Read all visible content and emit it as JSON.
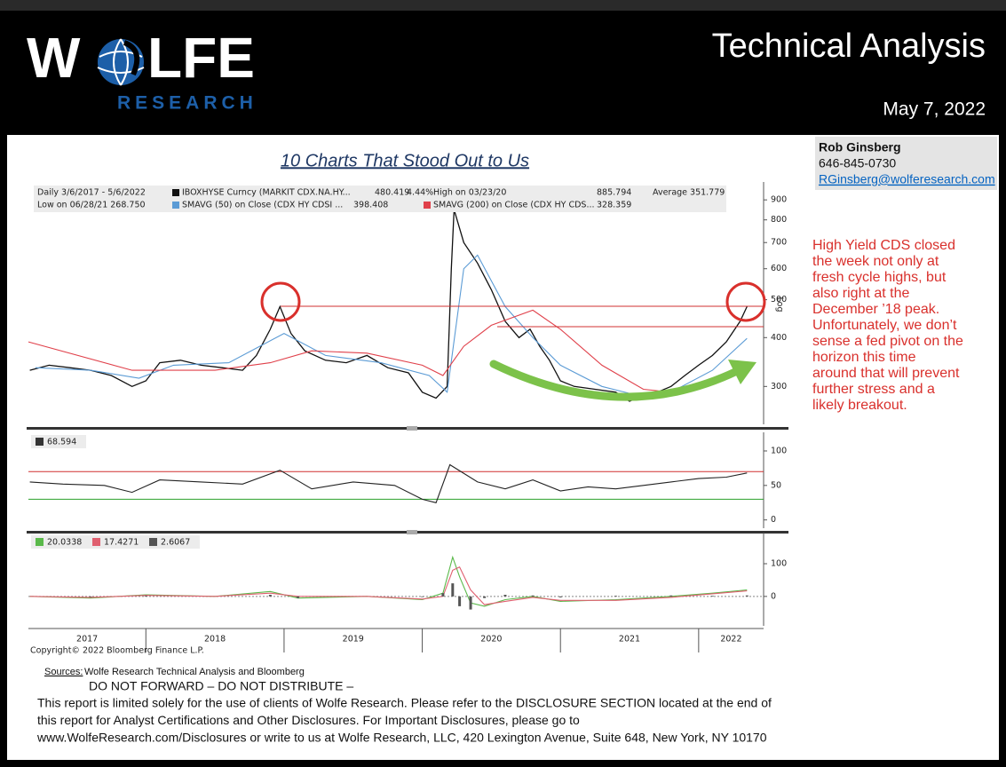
{
  "header": {
    "logo_left": "W",
    "logo_right": "LFE",
    "logo_sub": "RESEARCH",
    "title": "Technical Analysis",
    "date": "May 7, 2022"
  },
  "contact": {
    "name": "Rob Ginsberg",
    "phone": "646-845-0730",
    "email": "RGinsberg@wolferesearch.com"
  },
  "chart_title": "10 Charts That Stood Out to Us",
  "chart_data": [
    {
      "type": "line",
      "log": true,
      "ylim": [
        240,
        1000
      ],
      "yticks": [
        300,
        400,
        500,
        600,
        700,
        800,
        900
      ],
      "xlim": [
        2017.15,
        2022.47
      ],
      "axis_label": "Log",
      "legend": [
        [
          "Daily 3/6/2017 - 5/6/2022",
          "IBOXHYSE Curncy (MARKIT CDX.NA.HY...",
          "480.419",
          "4.44%",
          "High on 03/23/20",
          "885.794",
          "Average 351.779"
        ],
        [
          "Low on 06/28/21 268.750",
          "SMAVG (50)  on Close (CDX HY CDSI ...",
          "398.408",
          "SMAVG (200)  on Close (CDX HY CDS...",
          "328.359"
        ]
      ],
      "series": [
        {
          "color": "#111111",
          "x": [
            2017.16,
            2017.3,
            2017.45,
            2017.6,
            2017.75,
            2017.9,
            2018.0,
            2018.1,
            2018.25,
            2018.4,
            2018.55,
            2018.7,
            2018.8,
            2018.9,
            2018.97,
            2019.05,
            2019.15,
            2019.3,
            2019.45,
            2019.6,
            2019.75,
            2019.9,
            2020.0,
            2020.1,
            2020.18,
            2020.21,
            2020.23,
            2020.3,
            2020.4,
            2020.5,
            2020.6,
            2020.7,
            2020.78,
            2020.85,
            2020.92,
            2021.0,
            2021.1,
            2021.25,
            2021.4,
            2021.5,
            2021.6,
            2021.7,
            2021.8,
            2021.9,
            2022.0,
            2022.1,
            2022.2,
            2022.3,
            2022.35
          ],
          "values": [
            330,
            340,
            335,
            330,
            320,
            300,
            310,
            345,
            350,
            340,
            335,
            330,
            360,
            420,
            480,
            410,
            370,
            350,
            345,
            360,
            335,
            325,
            290,
            280,
            300,
            600,
            850,
            700,
            620,
            530,
            440,
            400,
            420,
            380,
            350,
            310,
            300,
            295,
            290,
            275,
            285,
            290,
            300,
            320,
            340,
            360,
            390,
            440,
            480
          ]
        },
        {
          "color": "#5b9bd5",
          "x": [
            2017.2,
            2017.6,
            2017.95,
            2018.2,
            2018.6,
            2019.0,
            2019.3,
            2019.7,
            2020.05,
            2020.18,
            2020.3,
            2020.4,
            2020.6,
            2020.8,
            2021.0,
            2021.3,
            2021.55,
            2021.8,
            2022.1,
            2022.35
          ],
          "values": [
            335,
            330,
            315,
            340,
            345,
            410,
            360,
            345,
            320,
            290,
            600,
            650,
            480,
            400,
            340,
            300,
            285,
            290,
            330,
            398
          ]
        },
        {
          "color": "#e0404a",
          "x": [
            2017.15,
            2017.9,
            2018.5,
            2018.9,
            2019.2,
            2019.6,
            2020.0,
            2020.15,
            2020.3,
            2020.5,
            2020.8,
            2021.0,
            2021.3,
            2021.6,
            2021.8,
            2022.0,
            2022.35
          ],
          "values": [
            390,
            330,
            330,
            345,
            370,
            365,
            340,
            320,
            380,
            430,
            470,
            420,
            340,
            295,
            290,
            300,
            328
          ]
        }
      ]
    },
    {
      "type": "line",
      "ylim": [
        -12,
        127
      ],
      "yticks": [
        0,
        50,
        100
      ],
      "xlim": [
        2017.15,
        2022.47
      ],
      "legend": [
        [
          "68.594"
        ]
      ],
      "ref_lines": [
        {
          "value": 70,
          "color": "#d03030"
        },
        {
          "value": 30,
          "color": "#2aa02a"
        }
      ],
      "series": [
        {
          "color": "#222222",
          "x": [
            2017.16,
            2017.4,
            2017.7,
            2017.9,
            2018.1,
            2018.4,
            2018.7,
            2018.97,
            2019.2,
            2019.5,
            2019.8,
            2020.0,
            2020.1,
            2020.2,
            2020.4,
            2020.6,
            2020.8,
            2021.0,
            2021.2,
            2021.4,
            2021.6,
            2021.8,
            2022.0,
            2022.2,
            2022.35
          ],
          "values": [
            55,
            52,
            50,
            40,
            58,
            55,
            52,
            72,
            45,
            55,
            50,
            30,
            25,
            80,
            55,
            45,
            58,
            42,
            48,
            45,
            50,
            55,
            60,
            62,
            68
          ]
        }
      ]
    },
    {
      "type": "line",
      "ylim": [
        -90,
        195
      ],
      "yticks": [
        0,
        100
      ],
      "xlim": [
        2017.15,
        2022.47
      ],
      "legend": [
        [
          "20.0338",
          "17.4271",
          "2.6067"
        ]
      ],
      "xticks": [
        2018,
        2019,
        2020,
        2021,
        2022
      ],
      "year_labels": [
        "2017",
        "2018",
        "2019",
        "2020",
        "2021",
        "2022"
      ],
      "copyright": "Copyright© 2022 Bloomberg Finance L.P.",
      "series": [
        {
          "color": "#5ab94a",
          "x": [
            2017.16,
            2017.6,
            2018.0,
            2018.5,
            2018.9,
            2019.1,
            2019.6,
            2020.0,
            2020.15,
            2020.22,
            2020.27,
            2020.35,
            2020.45,
            2020.6,
            2020.8,
            2021.0,
            2021.4,
            2021.8,
            2022.1,
            2022.35
          ],
          "values": [
            0,
            -5,
            5,
            0,
            15,
            -5,
            0,
            -10,
            10,
            120,
            60,
            -20,
            -30,
            -10,
            0,
            -15,
            -10,
            0,
            10,
            20
          ]
        },
        {
          "color": "#e06070",
          "x": [
            2017.16,
            2017.6,
            2018.0,
            2018.5,
            2018.9,
            2019.1,
            2019.6,
            2020.0,
            2020.15,
            2020.22,
            2020.27,
            2020.35,
            2020.45,
            2020.6,
            2020.8,
            2021.0,
            2021.4,
            2021.8,
            2022.1,
            2022.35
          ],
          "values": [
            0,
            -3,
            3,
            0,
            10,
            0,
            0,
            -8,
            0,
            80,
            90,
            20,
            -25,
            -15,
            -3,
            -12,
            -12,
            -3,
            8,
            17
          ]
        },
        {
          "color": "#555555",
          "bars": true,
          "x": [
            2017.16,
            2017.6,
            2018.0,
            2018.5,
            2018.9,
            2019.1,
            2019.6,
            2020.0,
            2020.15,
            2020.22,
            2020.27,
            2020.35,
            2020.45,
            2020.6,
            2020.8,
            2021.0,
            2021.4,
            2021.8,
            2022.1,
            2022.35
          ],
          "values": [
            0,
            -2,
            2,
            0,
            5,
            -5,
            0,
            -2,
            10,
            40,
            -30,
            -40,
            -5,
            5,
            3,
            -3,
            2,
            3,
            2,
            3
          ]
        }
      ]
    }
  ],
  "commentary": [
    "High Yield CDS closed",
    "the week not only at",
    "fresh cycle highs, but",
    "also right at the",
    "December ’18 peak.",
    "Unfortunately, we don’t",
    "sense a fed pivot on the",
    "horizon this time",
    "around that will prevent",
    "further stress and a",
    "likely breakout."
  ],
  "footer": {
    "sources_label": "Sources:",
    "sources": " Wolfe Research Technical Analysis and Bloomberg",
    "notice": "DO NOT FORWARD – DO NOT DISTRIBUTE –",
    "disclaimer": [
      "This report is limited solely for the use of clients of Wolfe Research. Please refer to the DISCLOSURE SECTION located at the end of",
      "this report for Analyst Certifications and Other Disclosures. For Important Disclosures, please go to",
      "www.WolfeResearch.com/Disclosures or write to us at Wolfe Research, LLC, 420 Lexington Avenue, Suite 648, New York, NY 10170"
    ]
  }
}
